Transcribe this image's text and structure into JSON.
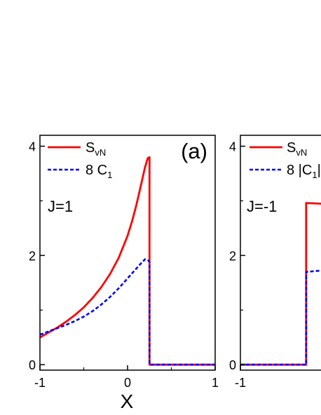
{
  "chart_data": [
    {
      "type": "line",
      "panel_label": "(a)",
      "annotation": "J=1",
      "xlabel": "X",
      "xlim": [
        -1,
        1
      ],
      "ylim": [
        -0.1,
        4.2
      ],
      "x_ticks": [
        "-1",
        "0",
        "1"
      ],
      "y_ticks": [
        "0",
        "2",
        "4"
      ],
      "legend_position": "top-left",
      "series": [
        {
          "name_main": "S",
          "name_sub": "vN",
          "name_tail": "",
          "color": "#ff0000",
          "style": "solid",
          "x": [
            -1,
            -0.9,
            -0.8,
            -0.7,
            -0.6,
            -0.5,
            -0.4,
            -0.3,
            -0.2,
            -0.1,
            0,
            0.05,
            0.1,
            0.15,
            0.2,
            0.23,
            0.25,
            0.25,
            0.5,
            0.75,
            1
          ],
          "y": [
            0.5,
            0.59,
            0.68,
            0.79,
            0.91,
            1.05,
            1.22,
            1.42,
            1.66,
            1.96,
            2.36,
            2.62,
            2.92,
            3.27,
            3.62,
            3.78,
            3.8,
            0,
            0,
            0,
            0
          ]
        },
        {
          "name_main": "8 C",
          "name_sub": "1",
          "name_tail": "",
          "color": "#0000ff",
          "style": "dashed",
          "x": [
            -1,
            -0.9,
            -0.8,
            -0.7,
            -0.6,
            -0.5,
            -0.4,
            -0.3,
            -0.2,
            -0.1,
            0,
            0.1,
            0.15,
            0.2,
            0.23,
            0.25,
            0.25,
            0.5,
            0.75,
            1
          ],
          "y": [
            0.55,
            0.61,
            0.67,
            0.73,
            0.8,
            0.88,
            0.98,
            1.1,
            1.24,
            1.4,
            1.58,
            1.76,
            1.85,
            1.93,
            1.92,
            1.88,
            0,
            0,
            0,
            0
          ]
        }
      ]
    },
    {
      "type": "line",
      "panel_label": "",
      "annotation": "J=-1",
      "xlabel": "",
      "xlim": [
        -1,
        1
      ],
      "ylim": [
        -0.1,
        4.2
      ],
      "x_ticks": [
        "-1"
      ],
      "y_ticks": [
        "0",
        "2",
        "4"
      ],
      "legend_position": "top-left",
      "series": [
        {
          "name_main": "S",
          "name_sub": "vN",
          "name_tail": "",
          "color": "#ff0000",
          "style": "solid",
          "x": [
            -1,
            -0.25,
            -0.25,
            -0.1,
            0
          ],
          "y": [
            0,
            0,
            2.96,
            2.95,
            2.94
          ]
        },
        {
          "name_main": "8 |C",
          "name_sub": "1",
          "name_tail": "|",
          "color": "#0000ff",
          "style": "dashed",
          "x": [
            -1,
            -0.25,
            -0.25,
            -0.1,
            0
          ],
          "y": [
            0,
            0,
            1.7,
            1.72,
            1.72
          ]
        }
      ]
    }
  ]
}
